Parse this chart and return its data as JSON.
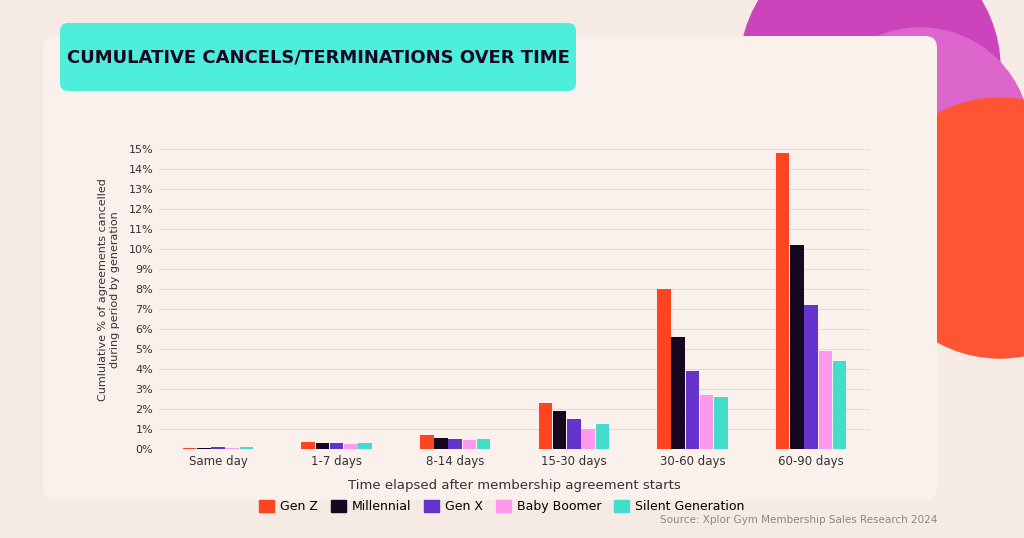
{
  "title": "CUMULATIVE CANCELS/TERMINATIONS OVER TIME",
  "xlabel": "Time elapsed after membership agreement starts",
  "ylabel": "Cumlulative % of agreements cancelled\nduring period by generation",
  "source": "Source: Xplor Gym Membership Sales Research 2024",
  "categories": [
    "Same day",
    "1-7 days",
    "8-14 days",
    "15-30 days",
    "30-60 days",
    "60-90 days"
  ],
  "generations": [
    "Gen Z",
    "Millennial",
    "Gen X",
    "Baby Boomer",
    "Silent Generation"
  ],
  "colors": [
    "#FF4422",
    "#160820",
    "#6633CC",
    "#FF99EE",
    "#44DDCC"
  ],
  "data": {
    "Gen Z": [
      0.05,
      0.35,
      0.7,
      2.3,
      8.0,
      14.8
    ],
    "Millennial": [
      0.05,
      0.3,
      0.55,
      1.9,
      5.6,
      10.2
    ],
    "Gen X": [
      0.1,
      0.3,
      0.5,
      1.5,
      3.9,
      7.2
    ],
    "Baby Boomer": [
      0.05,
      0.25,
      0.45,
      1.0,
      2.7,
      4.9
    ],
    "Silent Generation": [
      0.1,
      0.3,
      0.5,
      1.25,
      2.6,
      4.4
    ]
  },
  "ylim": [
    0,
    16
  ],
  "yticks": [
    0,
    1,
    2,
    3,
    4,
    5,
    6,
    7,
    8,
    9,
    10,
    11,
    12,
    13,
    14,
    15
  ],
  "bg_outer": "#F5EAE4",
  "bg_card": "#FAF0EC",
  "title_bg": "#4EEEDD",
  "title_color": "#160820",
  "axis_color": "#333333",
  "grid_color": "#ECD8D0",
  "dec_pink": "#CC44BB",
  "dec_orange": "#FF5533",
  "dec_pink2": "#DD66CC"
}
